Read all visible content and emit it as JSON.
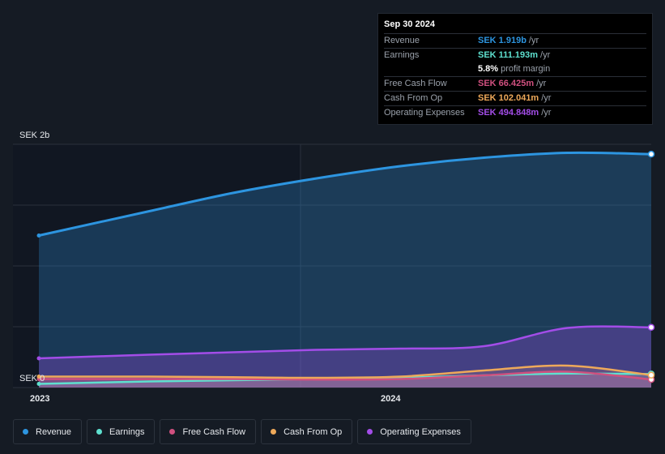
{
  "chart_data": {
    "type": "area",
    "y_axis_labels": [
      "SEK 2b",
      "SEK 0"
    ],
    "x_ticks": [
      "2023",
      "2024"
    ],
    "ylim": [
      0,
      2.0
    ],
    "series": [
      {
        "name": "Revenue",
        "color": "#2d95e0",
        "x": [
          2022.92,
          2023.25,
          2023.5,
          2023.75,
          2024.0,
          2024.25,
          2024.5,
          2024.75
        ],
        "values": [
          1.25,
          1.45,
          1.6,
          1.72,
          1.82,
          1.89,
          1.93,
          1.919
        ]
      },
      {
        "name": "Earnings",
        "color": "#5ee0cf",
        "x": [
          2022.92,
          2023.25,
          2023.5,
          2023.75,
          2024.0,
          2024.25,
          2024.5,
          2024.75
        ],
        "values": [
          0.03,
          0.05,
          0.06,
          0.07,
          0.08,
          0.1,
          0.115,
          0.111
        ]
      },
      {
        "name": "Free Cash Flow",
        "color": "#d0507f",
        "x": [
          2022.92,
          2023.25,
          2023.5,
          2023.75,
          2024.0,
          2024.25,
          2024.5,
          2024.75
        ],
        "values": [
          0.07,
          0.07,
          0.07,
          0.065,
          0.07,
          0.1,
          0.13,
          0.066
        ]
      },
      {
        "name": "Cash From Op",
        "color": "#eea95a",
        "x": [
          2022.92,
          2023.25,
          2023.5,
          2023.75,
          2024.0,
          2024.25,
          2024.5,
          2024.75
        ],
        "values": [
          0.09,
          0.09,
          0.085,
          0.08,
          0.09,
          0.14,
          0.18,
          0.102
        ]
      },
      {
        "name": "Operating Expenses",
        "color": "#a34de8",
        "x": [
          2022.92,
          2023.25,
          2023.5,
          2023.75,
          2024.0,
          2024.25,
          2024.5,
          2024.75
        ],
        "values": [
          0.24,
          0.27,
          0.29,
          0.31,
          0.32,
          0.34,
          0.49,
          0.495
        ]
      }
    ],
    "grid": true
  },
  "tooltip": {
    "date": "Sep 30 2024",
    "rows": [
      {
        "label": "Revenue",
        "value": "SEK 1.919b",
        "unit": "/yr",
        "color": "#2d95e0"
      },
      {
        "label": "Earnings",
        "value": "SEK 111.193m",
        "unit": "/yr",
        "color": "#5ee0cf"
      },
      {
        "label": "",
        "value": "5.8%",
        "unit": "profit margin",
        "color": "#ffffff",
        "sub": true
      },
      {
        "label": "Free Cash Flow",
        "value": "SEK 66.425m",
        "unit": "/yr",
        "color": "#d0507f"
      },
      {
        "label": "Cash From Op",
        "value": "SEK 102.041m",
        "unit": "/yr",
        "color": "#eea95a"
      },
      {
        "label": "Operating Expenses",
        "value": "SEK 494.848m",
        "unit": "/yr",
        "color": "#a34de8"
      }
    ]
  },
  "legend": [
    {
      "label": "Revenue",
      "color": "#2d95e0"
    },
    {
      "label": "Earnings",
      "color": "#5ee0cf"
    },
    {
      "label": "Free Cash Flow",
      "color": "#d0507f"
    },
    {
      "label": "Cash From Op",
      "color": "#eea95a"
    },
    {
      "label": "Operating Expenses",
      "color": "#a34de8"
    }
  ]
}
